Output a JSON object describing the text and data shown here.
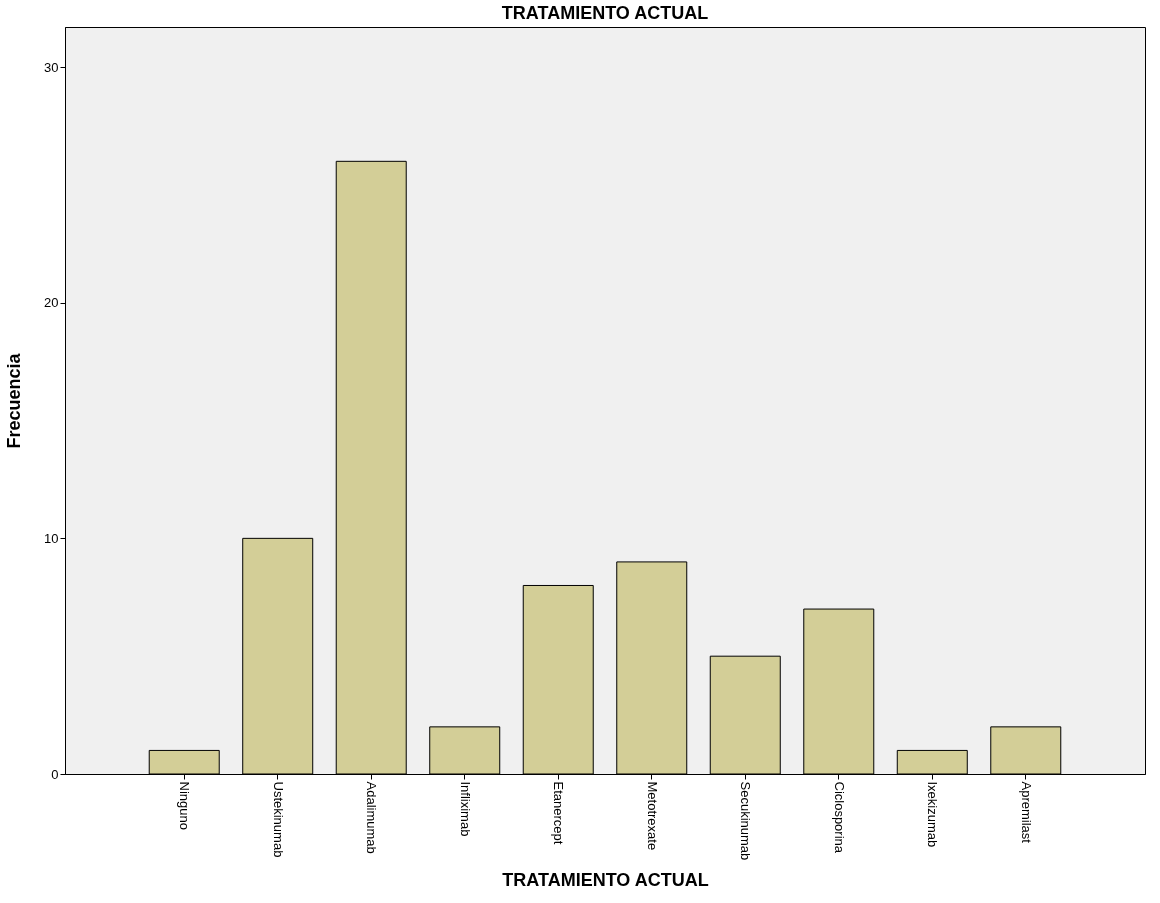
{
  "chart_data": {
    "type": "bar",
    "title": "TRATAMIENTO ACTUAL",
    "xlabel": "TRATAMIENTO ACTUAL",
    "ylabel": "Frecuencia",
    "categories": [
      "Ninguno",
      "Ustekinumab",
      "Adalimumab",
      "Infliximab",
      "Etanercept",
      "Metotrexate",
      "Secukinumab",
      "Ciclosporina",
      "Ixekizumab",
      "Apremilast"
    ],
    "values": [
      1,
      10,
      26,
      2,
      8,
      9,
      5,
      7,
      1,
      2
    ],
    "color": "#d3ce97",
    "ylim": [
      0,
      31.7
    ],
    "yticks": [
      0,
      10,
      20,
      30
    ],
    "grid": false
  }
}
